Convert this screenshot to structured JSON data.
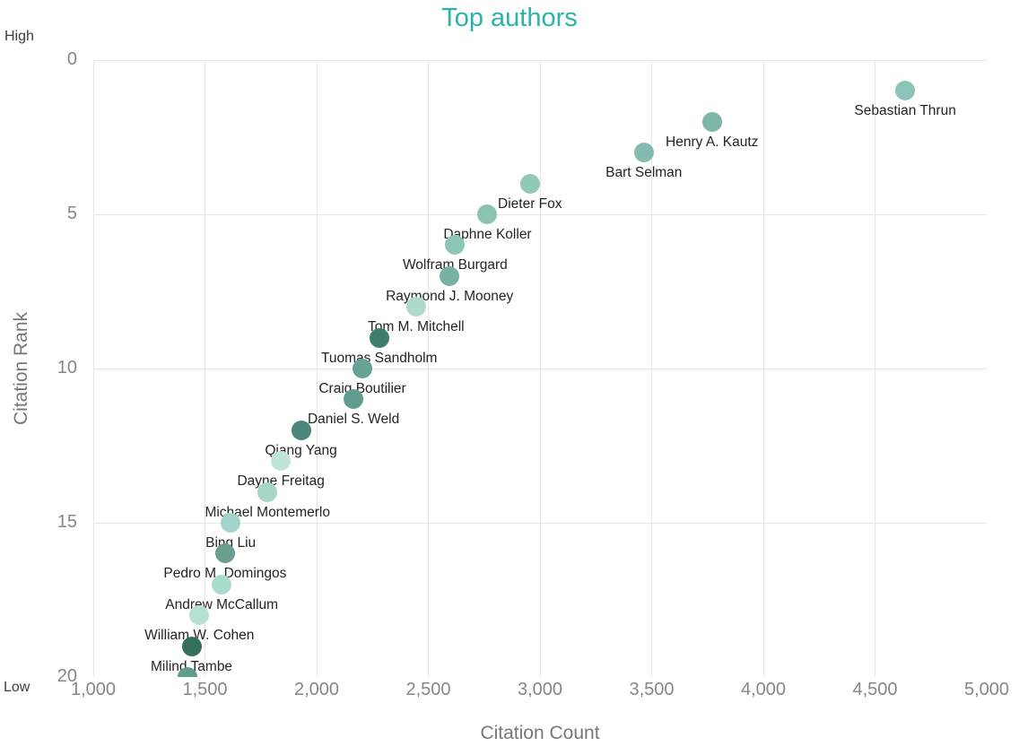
{
  "colors": {
    "title": "#2bb3aa",
    "tick_label": "#868686",
    "axis_title": "#777777",
    "endpoint_label": "#3c3c3c",
    "point_label": "#252423",
    "gridline": "#e6e6e6",
    "background": "#ffffff"
  },
  "chart_data": {
    "type": "scatter",
    "title": "Top authors",
    "xlabel": "Citation Count",
    "ylabel": "Citation Rank",
    "grid": true,
    "legend": false,
    "marker_diameter_px": 22,
    "x_axis": {
      "label": "Citation Count",
      "min": 1000,
      "max": 5000,
      "tick_values": [
        1000,
        1500,
        2000,
        2500,
        3000,
        3500,
        4000,
        4500,
        5000
      ],
      "tick_labels": [
        "1,000",
        "1,500",
        "2,000",
        "2,500",
        "3,000",
        "3,500",
        "4,000",
        "4,500",
        "5,000"
      ]
    },
    "y_axis": {
      "label": "Citation Rank",
      "min": 0,
      "max": 20,
      "inverted": true,
      "tick_values": [
        0,
        5,
        10,
        15,
        20
      ],
      "tick_labels": [
        "0",
        "5",
        "10",
        "15",
        "20"
      ],
      "endpoint_labels": {
        "top": "High",
        "bottom": "Low"
      }
    },
    "points": [
      {
        "author": "Sebastian Thrun",
        "citations": 4635,
        "rank": 1,
        "color": "#8cc5b6"
      },
      {
        "author": "Henry A. Kautz",
        "citations": 3770,
        "rank": 2,
        "color": "#7eb7aa"
      },
      {
        "author": "Bart Selman",
        "citations": 3465,
        "rank": 3,
        "color": "#83bcaf"
      },
      {
        "author": "Dieter Fox",
        "citations": 2955,
        "rank": 4,
        "color": "#92c8ba"
      },
      {
        "author": "Daphne Koller",
        "citations": 2765,
        "rank": 5,
        "color": "#8ac2b4"
      },
      {
        "author": "Wolfram Burgard",
        "citations": 2620,
        "rank": 6,
        "color": "#8dc6b8"
      },
      {
        "author": "Raymond J. Mooney",
        "citations": 2595,
        "rank": 7,
        "color": "#77b1a3"
      },
      {
        "author": "Tom M. Mitchell",
        "citations": 2445,
        "rank": 8,
        "color": "#aedacd"
      },
      {
        "author": "Tuomas Sandholm",
        "citations": 2280,
        "rank": 9,
        "color": "#3e7c6d"
      },
      {
        "author": "Craig Boutilier",
        "citations": 2205,
        "rank": 10,
        "color": "#67a395"
      },
      {
        "author": "Daniel S. Weld",
        "citations": 2165,
        "rank": 11,
        "color": "#609d8f"
      },
      {
        "author": "Qiang Yang",
        "citations": 1930,
        "rank": 12,
        "color": "#4b8679"
      },
      {
        "author": "Dayne Freitag",
        "citations": 1840,
        "rank": 13,
        "color": "#bfe4da"
      },
      {
        "author": "Michael Montemerlo",
        "citations": 1780,
        "rank": 14,
        "color": "#a7d6c9"
      },
      {
        "author": "Bing Liu",
        "citations": 1615,
        "rank": 15,
        "color": "#a3d5c8"
      },
      {
        "author": "Pedro M. Domingos",
        "citations": 1590,
        "rank": 16,
        "color": "#6b9e91"
      },
      {
        "author": "Andrew McCallum",
        "citations": 1575,
        "rank": 17,
        "color": "#a9dbce"
      },
      {
        "author": "William W. Cohen",
        "citations": 1475,
        "rank": 18,
        "color": "#b5e0d4"
      },
      {
        "author": "Milind Tambe",
        "citations": 1440,
        "rank": 19,
        "color": "#35705f"
      },
      {
        "author": "",
        "citations": 1420,
        "rank": 20,
        "color": "#5f9d8f"
      }
    ]
  }
}
